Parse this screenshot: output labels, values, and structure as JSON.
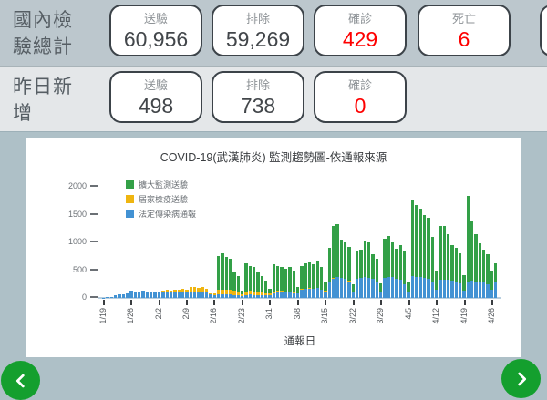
{
  "summary": {
    "total_row_label": "國內檢驗總計",
    "yesterday_row_label": "昨日新增",
    "total_stats": [
      {
        "label": "送驗",
        "value": "60,956"
      },
      {
        "label": "排除",
        "value": "59,269"
      },
      {
        "label": "確診",
        "value": "429"
      },
      {
        "label": "死亡",
        "value": "6"
      }
    ],
    "yesterday_stats": [
      {
        "label": "送驗",
        "value": "498"
      },
      {
        "label": "排除",
        "value": "738"
      },
      {
        "label": "確診",
        "value": "0"
      }
    ]
  },
  "colors": {
    "expanded_green": "#33a047",
    "quarantine_yellow": "#efb510",
    "notifiable_blue": "#4292d3",
    "alert_red": "#fe0000",
    "nav_green": "#149f2e"
  },
  "chart_data": {
    "type": "bar",
    "stacked": true,
    "title": "COVID-19(武漢肺炎) 監測趨勢圖-依通報來源",
    "xlabel": "通報日",
    "ylabel": "",
    "ylim": [
      0,
      2000
    ],
    "yticks": [
      0,
      500,
      1000,
      1500,
      2000
    ],
    "grid": false,
    "legend_position": "upper left inside",
    "start_date": "1/19",
    "end_date": "4/27",
    "tick_every_days": 7,
    "x_tick_labels": [
      "1/19",
      "1/26",
      "2/2",
      "2/9",
      "2/16",
      "2/23",
      "3/1",
      "3/8",
      "3/15",
      "3/22",
      "3/29",
      "4/5",
      "4/12",
      "4/19",
      "4/26"
    ],
    "series": [
      {
        "name": "擴大監測送驗",
        "color": "#33a047",
        "stack_order": 3,
        "values": [
          0,
          0,
          0,
          0,
          0,
          0,
          0,
          0,
          0,
          0,
          0,
          0,
          0,
          0,
          0,
          0,
          0,
          0,
          0,
          0,
          0,
          0,
          0,
          0,
          0,
          0,
          0,
          0,
          0,
          615,
          645,
          600,
          560,
          350,
          290,
          65,
          500,
          450,
          430,
          365,
          295,
          230,
          95,
          480,
          455,
          425,
          400,
          440,
          385,
          110,
          420,
          460,
          475,
          440,
          500,
          405,
          175,
          615,
          945,
          955,
          685,
          655,
          615,
          150,
          510,
          510,
          660,
          640,
          440,
          420,
          160,
          700,
          730,
          630,
          530,
          620,
          590,
          180,
          1350,
          1290,
          1230,
          1140,
          1100,
          800,
          350,
          980,
          970,
          830,
          640,
          600,
          540,
          280,
          1530,
          1090,
          850,
          690,
          590,
          530,
          360,
          340
        ]
      },
      {
        "name": "居家檢疫送驗",
        "color": "#efb510",
        "stack_order": 2,
        "values": [
          0,
          0,
          0,
          0,
          0,
          0,
          0,
          0,
          0,
          0,
          0,
          0,
          0,
          0,
          0,
          15,
          30,
          25,
          40,
          30,
          60,
          50,
          80,
          85,
          70,
          75,
          55,
          30,
          25,
          85,
          90,
          85,
          80,
          70,
          60,
          25,
          65,
          70,
          65,
          60,
          55,
          45,
          25,
          30,
          25,
          20,
          20,
          15,
          15,
          10,
          10,
          10,
          5,
          5,
          5,
          5,
          5,
          5,
          5,
          5,
          5,
          5,
          5,
          0,
          0,
          0,
          0,
          0,
          0,
          0,
          0,
          0,
          0,
          0,
          0,
          0,
          0,
          0,
          0,
          0,
          0,
          0,
          0,
          0,
          0,
          0,
          0,
          0,
          0,
          0,
          0,
          0,
          0,
          0,
          0,
          0,
          0,
          0,
          0,
          0
        ]
      },
      {
        "name": "法定傳染病通報",
        "color": "#4292d3",
        "stack_order": 1,
        "values": [
          5,
          10,
          20,
          45,
          60,
          70,
          90,
          130,
          115,
          120,
          125,
          115,
          120,
          110,
          100,
          115,
          120,
          110,
          115,
          110,
          105,
          95,
          115,
          120,
          110,
          115,
          105,
          60,
          55,
          60,
          65,
          60,
          60,
          55,
          50,
          40,
          55,
          60,
          55,
          55,
          50,
          45,
          50,
          90,
          100,
          105,
          100,
          95,
          90,
          80,
          150,
          160,
          170,
          165,
          175,
          150,
          120,
          280,
          350,
          370,
          360,
          340,
          300,
          100,
          340,
          360,
          370,
          360,
          340,
          280,
          110,
          360,
          380,
          370,
          350,
          330,
          250,
          120,
          400,
          380,
          370,
          360,
          350,
          300,
          150,
          320,
          330,
          320,
          310,
          300,
          260,
          130,
          300,
          310,
          300,
          290,
          280,
          250,
          140,
          280
        ]
      }
    ]
  },
  "nav": {
    "prev_label": "previous chart",
    "next_label": "next chart"
  }
}
